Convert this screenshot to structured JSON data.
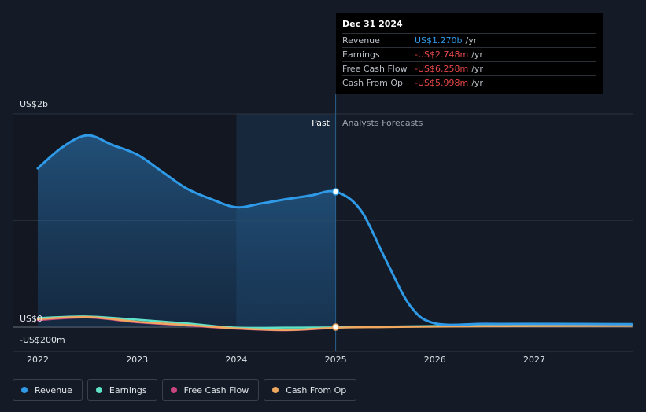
{
  "chart_data": {
    "type": "line",
    "x_ticks": [
      "2022",
      "2023",
      "2024",
      "2025",
      "2026",
      "2027"
    ],
    "y_labels": {
      "top": "US$2b",
      "zero": "US$0",
      "bottom": "-US$200m"
    },
    "ylim": [
      -200,
      2000
    ],
    "past_label": "Past",
    "forecast_label": "Analysts Forecasts",
    "series": [
      {
        "name": "Revenue",
        "color": "#2f9be8",
        "x": [
          2022.0,
          2022.25,
          2022.5,
          2022.75,
          2023.0,
          2023.25,
          2023.5,
          2023.75,
          2024.0,
          2024.25,
          2024.5,
          2024.75,
          2025.0,
          2025.25,
          2025.5,
          2025.75,
          2026.0,
          2026.5,
          2027.0,
          2027.98
        ],
        "y": [
          1490,
          1690,
          1800,
          1710,
          1620,
          1460,
          1300,
          1200,
          1125,
          1160,
          1200,
          1235,
          1270,
          1100,
          640,
          200,
          35,
          30,
          30,
          28
        ]
      },
      {
        "name": "Earnings",
        "color": "#5fe3c8",
        "x": [
          2022.0,
          2022.5,
          2023.0,
          2023.5,
          2024.0,
          2024.5,
          2025.0,
          2025.5,
          2026.0,
          2026.5,
          2027.0,
          2027.98
        ],
        "y": [
          85,
          100,
          70,
          35,
          -5,
          -5,
          -2.7,
          5,
          10,
          12,
          15,
          18
        ]
      },
      {
        "name": "Free Cash Flow",
        "color": "#c9467e",
        "x": [
          2022.0,
          2022.5,
          2023.0,
          2023.5,
          2024.0,
          2024.5,
          2025.0
        ],
        "y": [
          65,
          90,
          45,
          15,
          -15,
          -30,
          -6.3
        ]
      },
      {
        "name": "Cash From Op",
        "color": "#f0a860",
        "x": [
          2022.0,
          2022.5,
          2023.0,
          2023.5,
          2024.0,
          2024.5,
          2025.0,
          2025.5,
          2026.0,
          2026.5,
          2027.0,
          2027.98
        ],
        "y": [
          75,
          95,
          50,
          20,
          -12,
          -28,
          -6,
          0,
          5,
          8,
          10,
          12
        ]
      }
    ],
    "highlight": {
      "x": 2025.0,
      "revenue": 1270,
      "other": 0
    }
  },
  "tooltip": {
    "date": "Dec 31 2024",
    "rows": [
      {
        "name": "Revenue",
        "value": "US$1.270b",
        "unit": "/yr",
        "color": "#2f9be8"
      },
      {
        "name": "Earnings",
        "value": "-US$2.748m",
        "unit": "/yr",
        "color": "#e8484a"
      },
      {
        "name": "Free Cash Flow",
        "value": "-US$6.258m",
        "unit": "/yr",
        "color": "#e8484a"
      },
      {
        "name": "Cash From Op",
        "value": "-US$5.998m",
        "unit": "/yr",
        "color": "#e8484a"
      }
    ]
  },
  "legend": [
    {
      "label": "Revenue",
      "color": "#2f9be8"
    },
    {
      "label": "Earnings",
      "color": "#5fe3c8"
    },
    {
      "label": "Free Cash Flow",
      "color": "#c9467e"
    },
    {
      "label": "Cash From Op",
      "color": "#f0a860"
    }
  ]
}
